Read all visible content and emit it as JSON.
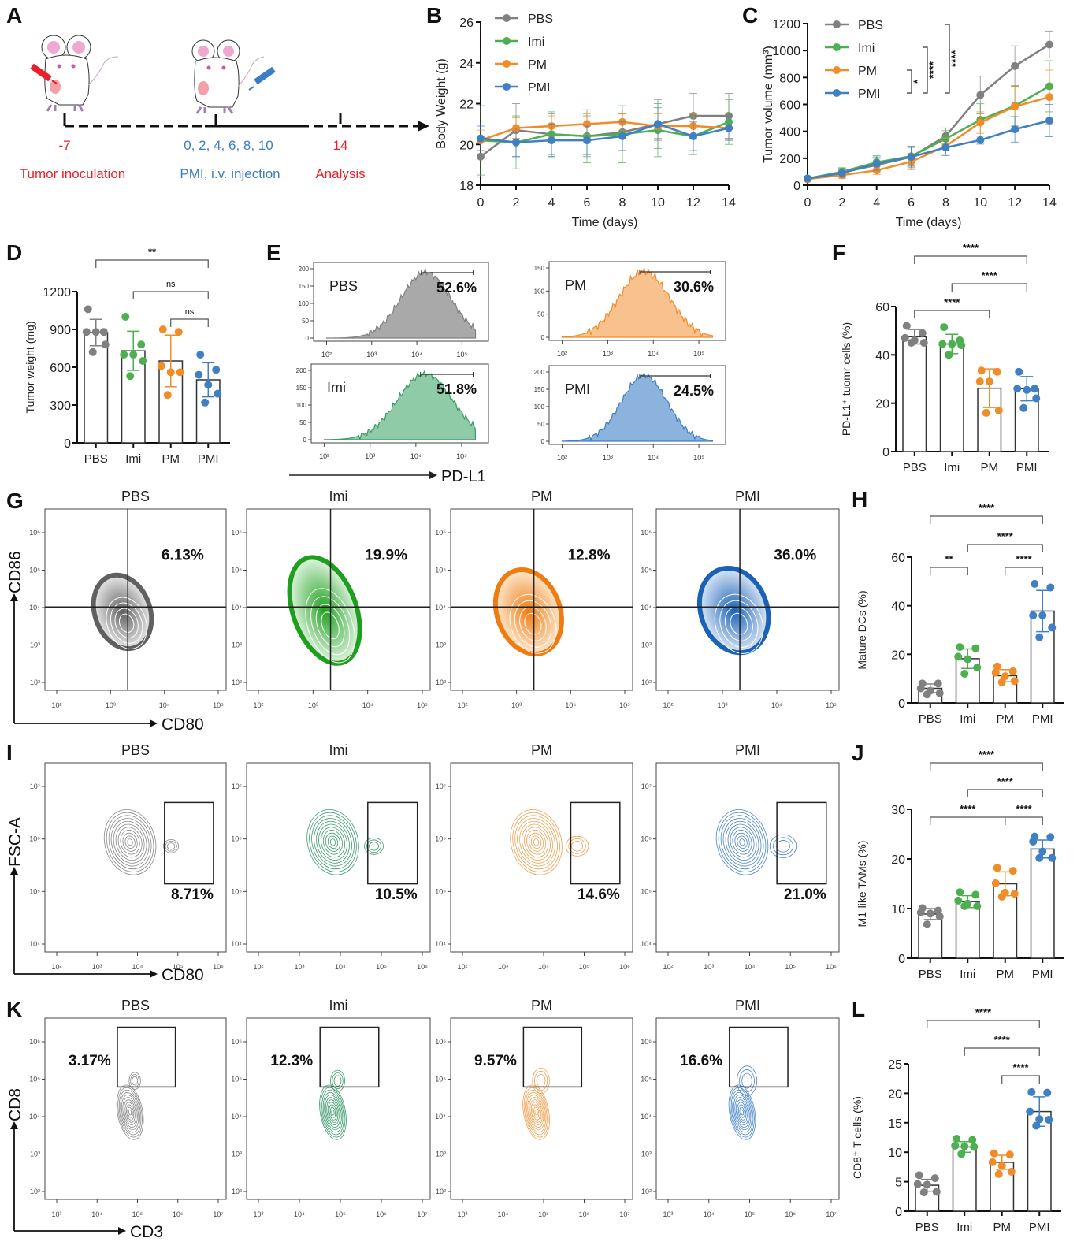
{
  "colors": {
    "PBS": "#808080",
    "Imi": "#4caf50",
    "PM": "#f28c28",
    "PMI": "#3f7fc4",
    "red": "#e8202a",
    "blue": "#3d7ec2",
    "Imi_flow": "#3a9b6a"
  },
  "panels": {
    "A": "A",
    "B": "B",
    "C": "C",
    "D": "D",
    "E": "E",
    "F": "F",
    "G": "G",
    "H": "H",
    "I": "I",
    "J": "J",
    "K": "K",
    "L": "L"
  },
  "timeline": {
    "inoculation_day": "-7",
    "inoculation_label": "Tumor inoculation",
    "injection_days": "0, 2, 4, 6, 8, 10",
    "injection_label": "PMI, i.v. injection",
    "analysis_day": "14",
    "analysis_label": "Analysis"
  },
  "chart_data": [
    {
      "id": "B",
      "type": "line",
      "xlabel": "Time (days)",
      "ylabel": "Body Weight (g)",
      "x": [
        0,
        2,
        4,
        6,
        8,
        10,
        12,
        14
      ],
      "xticks": [
        0,
        2,
        4,
        6,
        8,
        10,
        12,
        14
      ],
      "yticks": [
        18,
        20,
        22,
        24,
        26
      ],
      "xlim": [
        0,
        14
      ],
      "ylim": [
        18,
        26
      ],
      "legend": "top-left",
      "series": [
        {
          "name": "PBS",
          "values": [
            19.4,
            20.7,
            20.5,
            20.4,
            20.6,
            21.0,
            21.4,
            21.4
          ],
          "err": [
            1.0,
            1.3,
            1.0,
            1.0,
            0.9,
            1.2,
            1.1,
            1.1
          ]
        },
        {
          "name": "Imi",
          "values": [
            20.2,
            20.1,
            20.5,
            20.4,
            20.5,
            20.7,
            20.4,
            21.1
          ],
          "err": [
            1.7,
            1.3,
            1.1,
            1.3,
            1.4,
            1.3,
            0.9,
            1.1
          ]
        },
        {
          "name": "PM",
          "values": [
            20.2,
            20.8,
            20.9,
            21.0,
            21.1,
            20.9,
            20.9,
            20.8
          ],
          "err": [
            0.5,
            0.5,
            0.5,
            0.5,
            0.4,
            0.6,
            0.6,
            0.6
          ]
        },
        {
          "name": "PMI",
          "values": [
            20.3,
            20.1,
            20.2,
            20.2,
            20.4,
            21.0,
            20.4,
            20.8
          ],
          "err": [
            0.6,
            0.7,
            0.8,
            0.7,
            0.7,
            0.8,
            0.7,
            0.6
          ]
        }
      ]
    },
    {
      "id": "C",
      "type": "line",
      "xlabel": "Time (days)",
      "ylabel": "Tumor volume (mm³)",
      "x": [
        0,
        2,
        4,
        6,
        8,
        10,
        12,
        14
      ],
      "xticks": [
        0,
        2,
        4,
        6,
        8,
        10,
        12,
        14
      ],
      "yticks": [
        0,
        200,
        400,
        600,
        800,
        1000,
        1200
      ],
      "xlim": [
        0,
        14
      ],
      "ylim": [
        0,
        1200
      ],
      "legend": "top-left",
      "significance": [
        {
          "from": "PM",
          "to": "PMI",
          "label": "*"
        },
        {
          "from": "Imi",
          "to": "PMI",
          "label": "****"
        },
        {
          "from": "PBS",
          "to": "PMI",
          "label": "****"
        }
      ],
      "series": [
        {
          "name": "PBS",
          "values": [
            45,
            95,
            150,
            210,
            365,
            670,
            885,
            1045
          ],
          "err": [
            15,
            30,
            50,
            70,
            60,
            140,
            150,
            100
          ]
        },
        {
          "name": "Imi",
          "values": [
            50,
            100,
            170,
            215,
            345,
            485,
            590,
            735
          ],
          "err": [
            15,
            30,
            50,
            70,
            60,
            120,
            150,
            190
          ]
        },
        {
          "name": "PM",
          "values": [
            45,
            75,
            110,
            175,
            290,
            465,
            585,
            655
          ],
          "err": [
            10,
            25,
            30,
            60,
            60,
            80,
            150,
            200
          ]
        },
        {
          "name": "PMI",
          "values": [
            50,
            90,
            160,
            210,
            280,
            335,
            415,
            480
          ],
          "err": [
            15,
            30,
            50,
            80,
            60,
            30,
            95,
            120
          ]
        }
      ]
    },
    {
      "id": "D",
      "type": "bar",
      "ylabel": "Tumor weight (mg)",
      "categories": [
        "PBS",
        "Imi",
        "PM",
        "PMI"
      ],
      "yticks": [
        0,
        300,
        600,
        900,
        1200
      ],
      "ylim": [
        0,
        1200
      ],
      "values": [
        875,
        730,
        650,
        500
      ],
      "err": [
        105,
        155,
        205,
        135
      ],
      "points": [
        [
          1060,
          880,
          880,
          880,
          780,
          720
        ],
        [
          1000,
          780,
          700,
          700,
          650,
          530
        ],
        [
          900,
          880,
          610,
          560,
          560,
          380
        ],
        [
          700,
          580,
          540,
          460,
          390,
          320
        ]
      ],
      "significance": [
        {
          "from": "PBS",
          "to": "PMI",
          "label": "**"
        },
        {
          "from": "Imi",
          "to": "PMI",
          "label": "ns"
        },
        {
          "from": "PM",
          "to": "PMI",
          "label": "ns"
        }
      ]
    },
    {
      "id": "E",
      "type": "histogram",
      "xlabel": "PD-L1",
      "panels": [
        {
          "name": "PBS",
          "percent": "52.6%",
          "ymax": 200,
          "yticks": [
            0,
            50,
            100,
            150,
            200
          ],
          "peak_log": 4.2,
          "width": 0.55
        },
        {
          "name": "PM",
          "percent": "30.6%",
          "ymax": 150,
          "yticks": [
            0,
            50,
            100,
            150
          ],
          "peak_log": 3.8,
          "width": 0.55
        },
        {
          "name": "Imi",
          "percent": "51.8%",
          "ymax": 200,
          "yticks": [
            0,
            50,
            100,
            150,
            200
          ],
          "peak_log": 4.2,
          "width": 0.6
        },
        {
          "name": "PMI",
          "percent": "24.5%",
          "ymax": 200,
          "yticks": [
            0,
            50,
            100,
            150,
            200
          ],
          "peak_log": 3.8,
          "width": 0.5
        }
      ],
      "xticks": [
        "10²",
        "10³",
        "10⁴",
        "10⁵"
      ]
    },
    {
      "id": "F",
      "type": "bar",
      "ylabel": "PD-L1⁺ tuomr cells (%)",
      "categories": [
        "PBS",
        "Imi",
        "PM",
        "PMI"
      ],
      "yticks": [
        0,
        20,
        40,
        60
      ],
      "ylim": [
        0,
        60
      ],
      "values": [
        47.5,
        44.5,
        26.2,
        26.0
      ],
      "err": [
        3.0,
        4.0,
        8.0,
        5.0
      ],
      "points": [
        [
          52,
          49,
          47,
          46,
          45,
          45
        ],
        [
          51.5,
          46,
          44.5,
          44.5,
          44,
          40
        ],
        [
          33.5,
          33,
          29,
          29,
          17,
          16
        ],
        [
          33,
          26,
          26,
          25.5,
          22,
          18
        ]
      ],
      "significance": [
        {
          "from": "PBS",
          "to": "PM",
          "label": "****"
        },
        {
          "from": "PBS",
          "to": "PMI",
          "label": "****"
        },
        {
          "from": "Imi",
          "to": "PMI",
          "label": "****"
        }
      ]
    },
    {
      "id": "G",
      "type": "contour",
      "xlabel": "CD80",
      "ylabel": "CD86",
      "xticks": [
        "10²",
        "10³",
        "10⁴",
        "10⁵"
      ],
      "yticks": [
        "10²",
        "10³",
        "10⁴",
        "10⁵",
        "10⁶"
      ],
      "panels": [
        {
          "name": "PBS",
          "percent": "6.13%"
        },
        {
          "name": "Imi",
          "percent": "19.9%"
        },
        {
          "name": "PM",
          "percent": "12.8%"
        },
        {
          "name": "PMI",
          "percent": "36.0%"
        }
      ]
    },
    {
      "id": "H",
      "type": "bar",
      "ylabel": "Mature DCs (%)",
      "categories": [
        "PBS",
        "Imi",
        "PM",
        "PMI"
      ],
      "yticks": [
        0,
        20,
        40,
        60
      ],
      "ylim": [
        0,
        60
      ],
      "values": [
        6.0,
        18.2,
        11.2,
        37.8
      ],
      "err": [
        1.8,
        4.0,
        2.5,
        8.5
      ],
      "points": [
        [
          8,
          8,
          6,
          5,
          4,
          3.5
        ],
        [
          23,
          22.5,
          19,
          18,
          14.5,
          12
        ],
        [
          15,
          13,
          12.5,
          11,
          9,
          8.5
        ],
        [
          49,
          47.5,
          36,
          36,
          31,
          27
        ]
      ],
      "significance": [
        {
          "from": "PBS",
          "to": "Imi",
          "label": "**"
        },
        {
          "from": "PM",
          "to": "PMI",
          "label": "****"
        },
        {
          "from": "Imi",
          "to": "PMI",
          "label": "****"
        },
        {
          "from": "PBS",
          "to": "PMI",
          "label": "****"
        }
      ]
    },
    {
      "id": "I",
      "type": "contour",
      "xlabel": "CD80",
      "ylabel": "FSC-A",
      "xticks": [
        "10²",
        "10³",
        "10⁴",
        "10⁵",
        "10⁶"
      ],
      "yticks": [
        "10⁴",
        "10⁵",
        "10⁶",
        "10⁷"
      ],
      "panels": [
        {
          "name": "PBS",
          "percent": "8.71%"
        },
        {
          "name": "Imi",
          "percent": "10.5%"
        },
        {
          "name": "PM",
          "percent": "14.6%"
        },
        {
          "name": "PMI",
          "percent": "21.0%"
        }
      ]
    },
    {
      "id": "J",
      "type": "bar",
      "ylabel": "M1-like TAMs (%)",
      "categories": [
        "PBS",
        "Imi",
        "PM",
        "PMI"
      ],
      "yticks": [
        0,
        10,
        20,
        30
      ],
      "ylim": [
        0,
        30
      ],
      "values": [
        8.9,
        11.4,
        15.0,
        22.0
      ],
      "err": [
        1.1,
        1.2,
        2.4,
        1.8
      ],
      "points": [
        [
          10.1,
          9.6,
          9.2,
          9.0,
          8.4,
          6.8
        ],
        [
          13.3,
          12.8,
          11.6,
          11.0,
          10.5,
          10.5
        ],
        [
          18.2,
          17.6,
          15.1,
          13.2,
          13.0,
          12.4
        ],
        [
          24.5,
          24.4,
          23.5,
          21.5,
          20.2,
          20.2
        ]
      ],
      "significance": [
        {
          "from": "PBS",
          "to": "PM",
          "label": "****"
        },
        {
          "from": "PM",
          "to": "PMI",
          "label": "****"
        },
        {
          "from": "Imi",
          "to": "PMI",
          "label": "****"
        },
        {
          "from": "PBS",
          "to": "PMI",
          "label": "****"
        }
      ]
    },
    {
      "id": "K",
      "type": "contour",
      "xlabel": "CD3",
      "ylabel": "CD8",
      "xticks": [
        "10³",
        "10⁴",
        "10⁵",
        "10⁶",
        "10⁷"
      ],
      "yticks": [
        "10²",
        "10³",
        "10⁴",
        "10⁵",
        "10⁶"
      ],
      "panels": [
        {
          "name": "PBS",
          "percent": "3.17%"
        },
        {
          "name": "Imi",
          "percent": "12.3%"
        },
        {
          "name": "PM",
          "percent": "9.57%"
        },
        {
          "name": "PMI",
          "percent": "16.6%"
        }
      ]
    },
    {
      "id": "L",
      "type": "bar",
      "ylabel": "CD8⁺ T cells (%)",
      "categories": [
        "PBS",
        "Imi",
        "PM",
        "PMI"
      ],
      "yticks": [
        0,
        5,
        10,
        15,
        20,
        25
      ],
      "ylim": [
        0,
        25
      ],
      "values": [
        4.4,
        10.9,
        8.3,
        16.9
      ],
      "err": [
        1.0,
        0.9,
        1.2,
        2.5
      ],
      "points": [
        [
          6.1,
          5.6,
          4.6,
          4.5,
          3.3,
          3.2
        ],
        [
          12.3,
          12.1,
          11.1,
          11.0,
          10.9,
          9.7
        ],
        [
          9.8,
          9.6,
          8.3,
          7.7,
          6.7,
          6.3
        ],
        [
          20.2,
          20.1,
          16.9,
          15.6,
          15.5,
          14.5
        ]
      ],
      "significance": [
        {
          "from": "PM",
          "to": "PMI",
          "label": "****"
        },
        {
          "from": "Imi",
          "to": "PMI",
          "label": "****"
        },
        {
          "from": "PBS",
          "to": "PMI",
          "label": "****"
        }
      ]
    }
  ]
}
